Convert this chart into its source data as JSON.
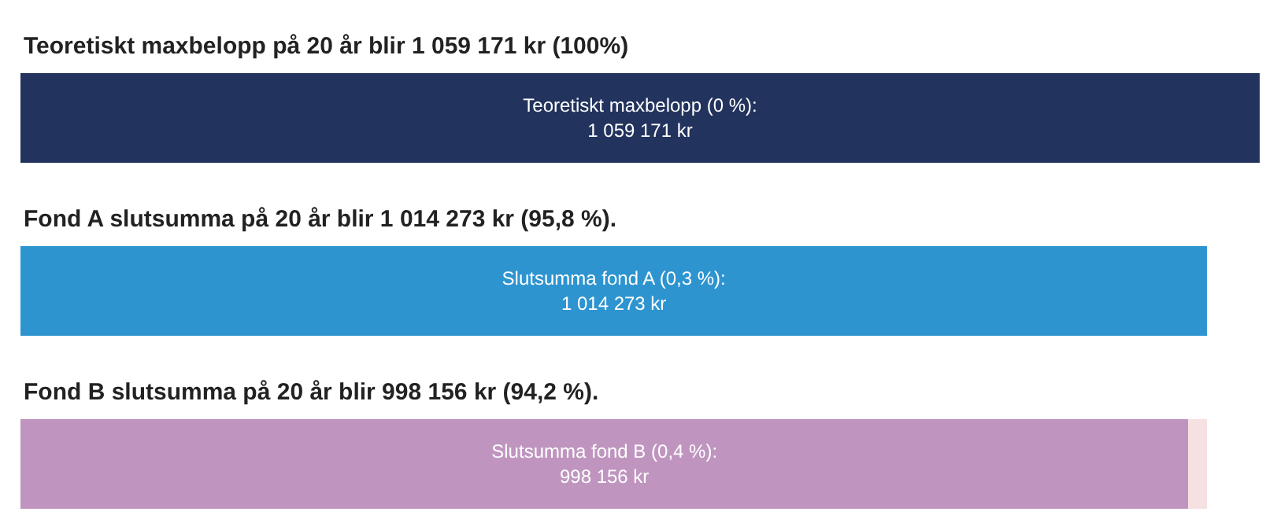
{
  "chart_data": {
    "type": "bar",
    "orientation": "horizontal",
    "stacked": true,
    "categories": [
      "Teoretiskt maxbelopp på 20 år blir 1 059 171 kr (100%)",
      "Fond A slutsumma på 20 år blir 1 014 273 kr (95,8 %).",
      "Fond B slutsumma på 20 år blir 998 156 kr (94,2 %)."
    ],
    "series": [
      {
        "colors": [
          "#22335d",
          "#2d94d0",
          "#bf95bf"
        ],
        "values": [
          1059171,
          1014273,
          998156
        ],
        "value_labels": [
          "Teoretiskt maxbelopp (0 %):\n1 059 171 kr",
          "Slutsumma fond A (0,3 %):\n1 014 273 kr",
          "Slutsumma fond B (0,4 %):\n998 156 kr"
        ]
      },
      {
        "color": "#f5e0e2",
        "values": [
          null,
          null,
          16117
        ]
      }
    ],
    "xlim": [
      0,
      1059171
    ]
  }
}
